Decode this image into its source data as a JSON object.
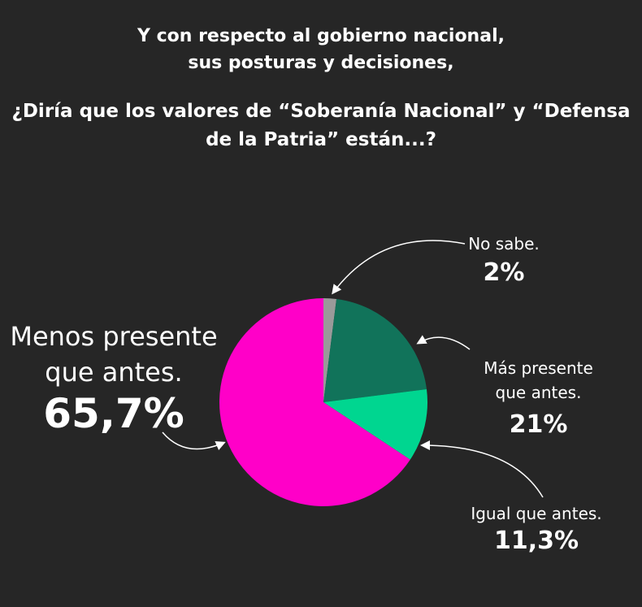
{
  "chart_data": {
    "type": "pie",
    "title": "Y con respecto al gobierno nacional, sus posturas y decisiones,",
    "subtitle": "¿Diría que los valores de “Soberanía Nacional” y “Defensa de la Patria” están...?",
    "categories": [
      "No sabe.",
      "Más presente que antes.",
      "Igual que antes.",
      "Menos presente que antes."
    ],
    "values": [
      2,
      21,
      11.3,
      65.7
    ],
    "value_labels": [
      "2%",
      "21%",
      "11,3%",
      "65,7%"
    ],
    "colors": [
      "#9a9a9a",
      "#11735a",
      "#00d690",
      "#ff00c8"
    ]
  }
}
